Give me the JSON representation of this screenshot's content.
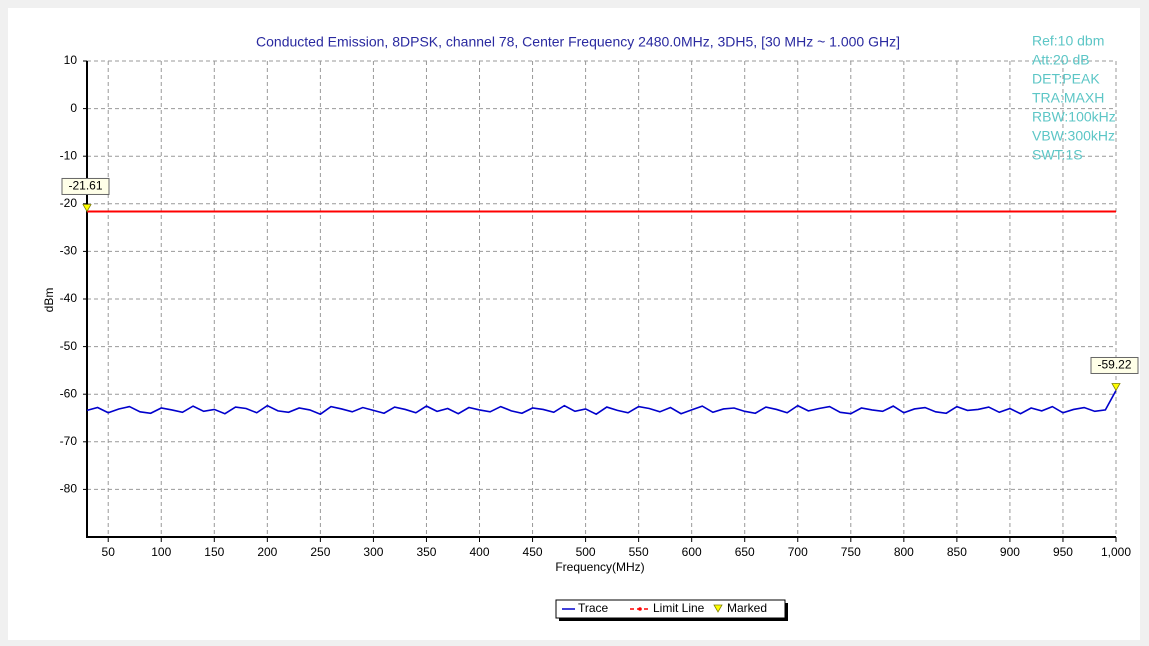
{
  "chart_data": {
    "type": "line",
    "title": "Conducted Emission, 8DPSK, channel 78, Center Frequency 2480.0MHz, 3DH5, [30 MHz ~ 1.000 GHz]",
    "x_label": "Frequency(MHz)",
    "y_label": "dBm",
    "settings": [
      "Ref:10 dbm",
      "Att:20 dB",
      "DET:PEAK",
      "TRA:MAXH",
      "RBW:100kHz",
      "VBW:300kHz",
      "SWT:1S"
    ],
    "settings_color": "#5cc6c6",
    "xlim": [
      30,
      1000
    ],
    "xticks": [
      50,
      100,
      150,
      200,
      250,
      300,
      350,
      400,
      450,
      500,
      550,
      600,
      650,
      700,
      750,
      800,
      850,
      900,
      950,
      {
        "value": 1000,
        "label": "1,000"
      }
    ],
    "ylim": [
      -90,
      10
    ],
    "yticks": [
      10,
      0,
      -10,
      -20,
      -30,
      -40,
      -50,
      -60,
      -70,
      -80
    ],
    "grid": true,
    "x": [
      30,
      40,
      50,
      60,
      70,
      80,
      90,
      100,
      110,
      120,
      130,
      140,
      150,
      160,
      170,
      180,
      190,
      200,
      210,
      220,
      230,
      240,
      250,
      260,
      270,
      280,
      290,
      300,
      310,
      320,
      330,
      340,
      350,
      360,
      370,
      380,
      390,
      400,
      410,
      420,
      430,
      440,
      450,
      460,
      470,
      480,
      490,
      500,
      510,
      520,
      530,
      540,
      550,
      560,
      570,
      580,
      590,
      600,
      610,
      620,
      630,
      640,
      650,
      660,
      670,
      680,
      690,
      700,
      710,
      720,
      730,
      740,
      750,
      760,
      770,
      780,
      790,
      800,
      810,
      820,
      830,
      840,
      850,
      860,
      870,
      880,
      890,
      900,
      910,
      920,
      930,
      940,
      950,
      960,
      970,
      980,
      990,
      1000
    ],
    "series": [
      {
        "name": "Trace",
        "color": "#0000cc",
        "values": [
          -63.4,
          -62.8,
          -63.9,
          -63.1,
          -62.6,
          -63.7,
          -64.0,
          -62.9,
          -63.3,
          -63.8,
          -62.5,
          -63.6,
          -63.2,
          -64.1,
          -62.7,
          -63.0,
          -63.9,
          -62.4,
          -63.5,
          -63.8,
          -62.9,
          -63.3,
          -64.2,
          -62.6,
          -63.1,
          -63.7,
          -62.8,
          -63.4,
          -64.0,
          -62.7,
          -63.2,
          -63.9,
          -62.5,
          -63.6,
          -63.0,
          -64.1,
          -62.8,
          -63.3,
          -63.7,
          -62.6,
          -63.5,
          -64.0,
          -62.9,
          -63.2,
          -63.8,
          -62.4,
          -63.6,
          -63.1,
          -64.2,
          -62.7,
          -63.4,
          -63.9,
          -62.6,
          -63.0,
          -63.7,
          -62.8,
          -64.1,
          -63.3,
          -62.5,
          -63.8,
          -63.1,
          -62.9,
          -63.6,
          -64.0,
          -62.7,
          -63.2,
          -63.9,
          -62.4,
          -63.5,
          -63.0,
          -62.6,
          -63.8,
          -64.1,
          -62.9,
          -63.3,
          -63.6,
          -62.5,
          -63.9,
          -63.1,
          -62.8,
          -63.7,
          -64.0,
          -62.6,
          -63.4,
          -63.2,
          -62.7,
          -63.8,
          -63.0,
          -64.1,
          -62.9,
          -63.5,
          -62.6,
          -63.9,
          -63.2,
          -62.8,
          -63.6,
          -63.3,
          -59.22
        ]
      }
    ],
    "limit_line": {
      "name": "Limit Line",
      "color": "#ff0000",
      "value": -21.61
    },
    "marked": {
      "name": "Marked",
      "color": "#ffff00",
      "points": [
        {
          "x": 30,
          "value": -21.61
        },
        {
          "x": 1000,
          "value": -59.22
        }
      ]
    }
  }
}
